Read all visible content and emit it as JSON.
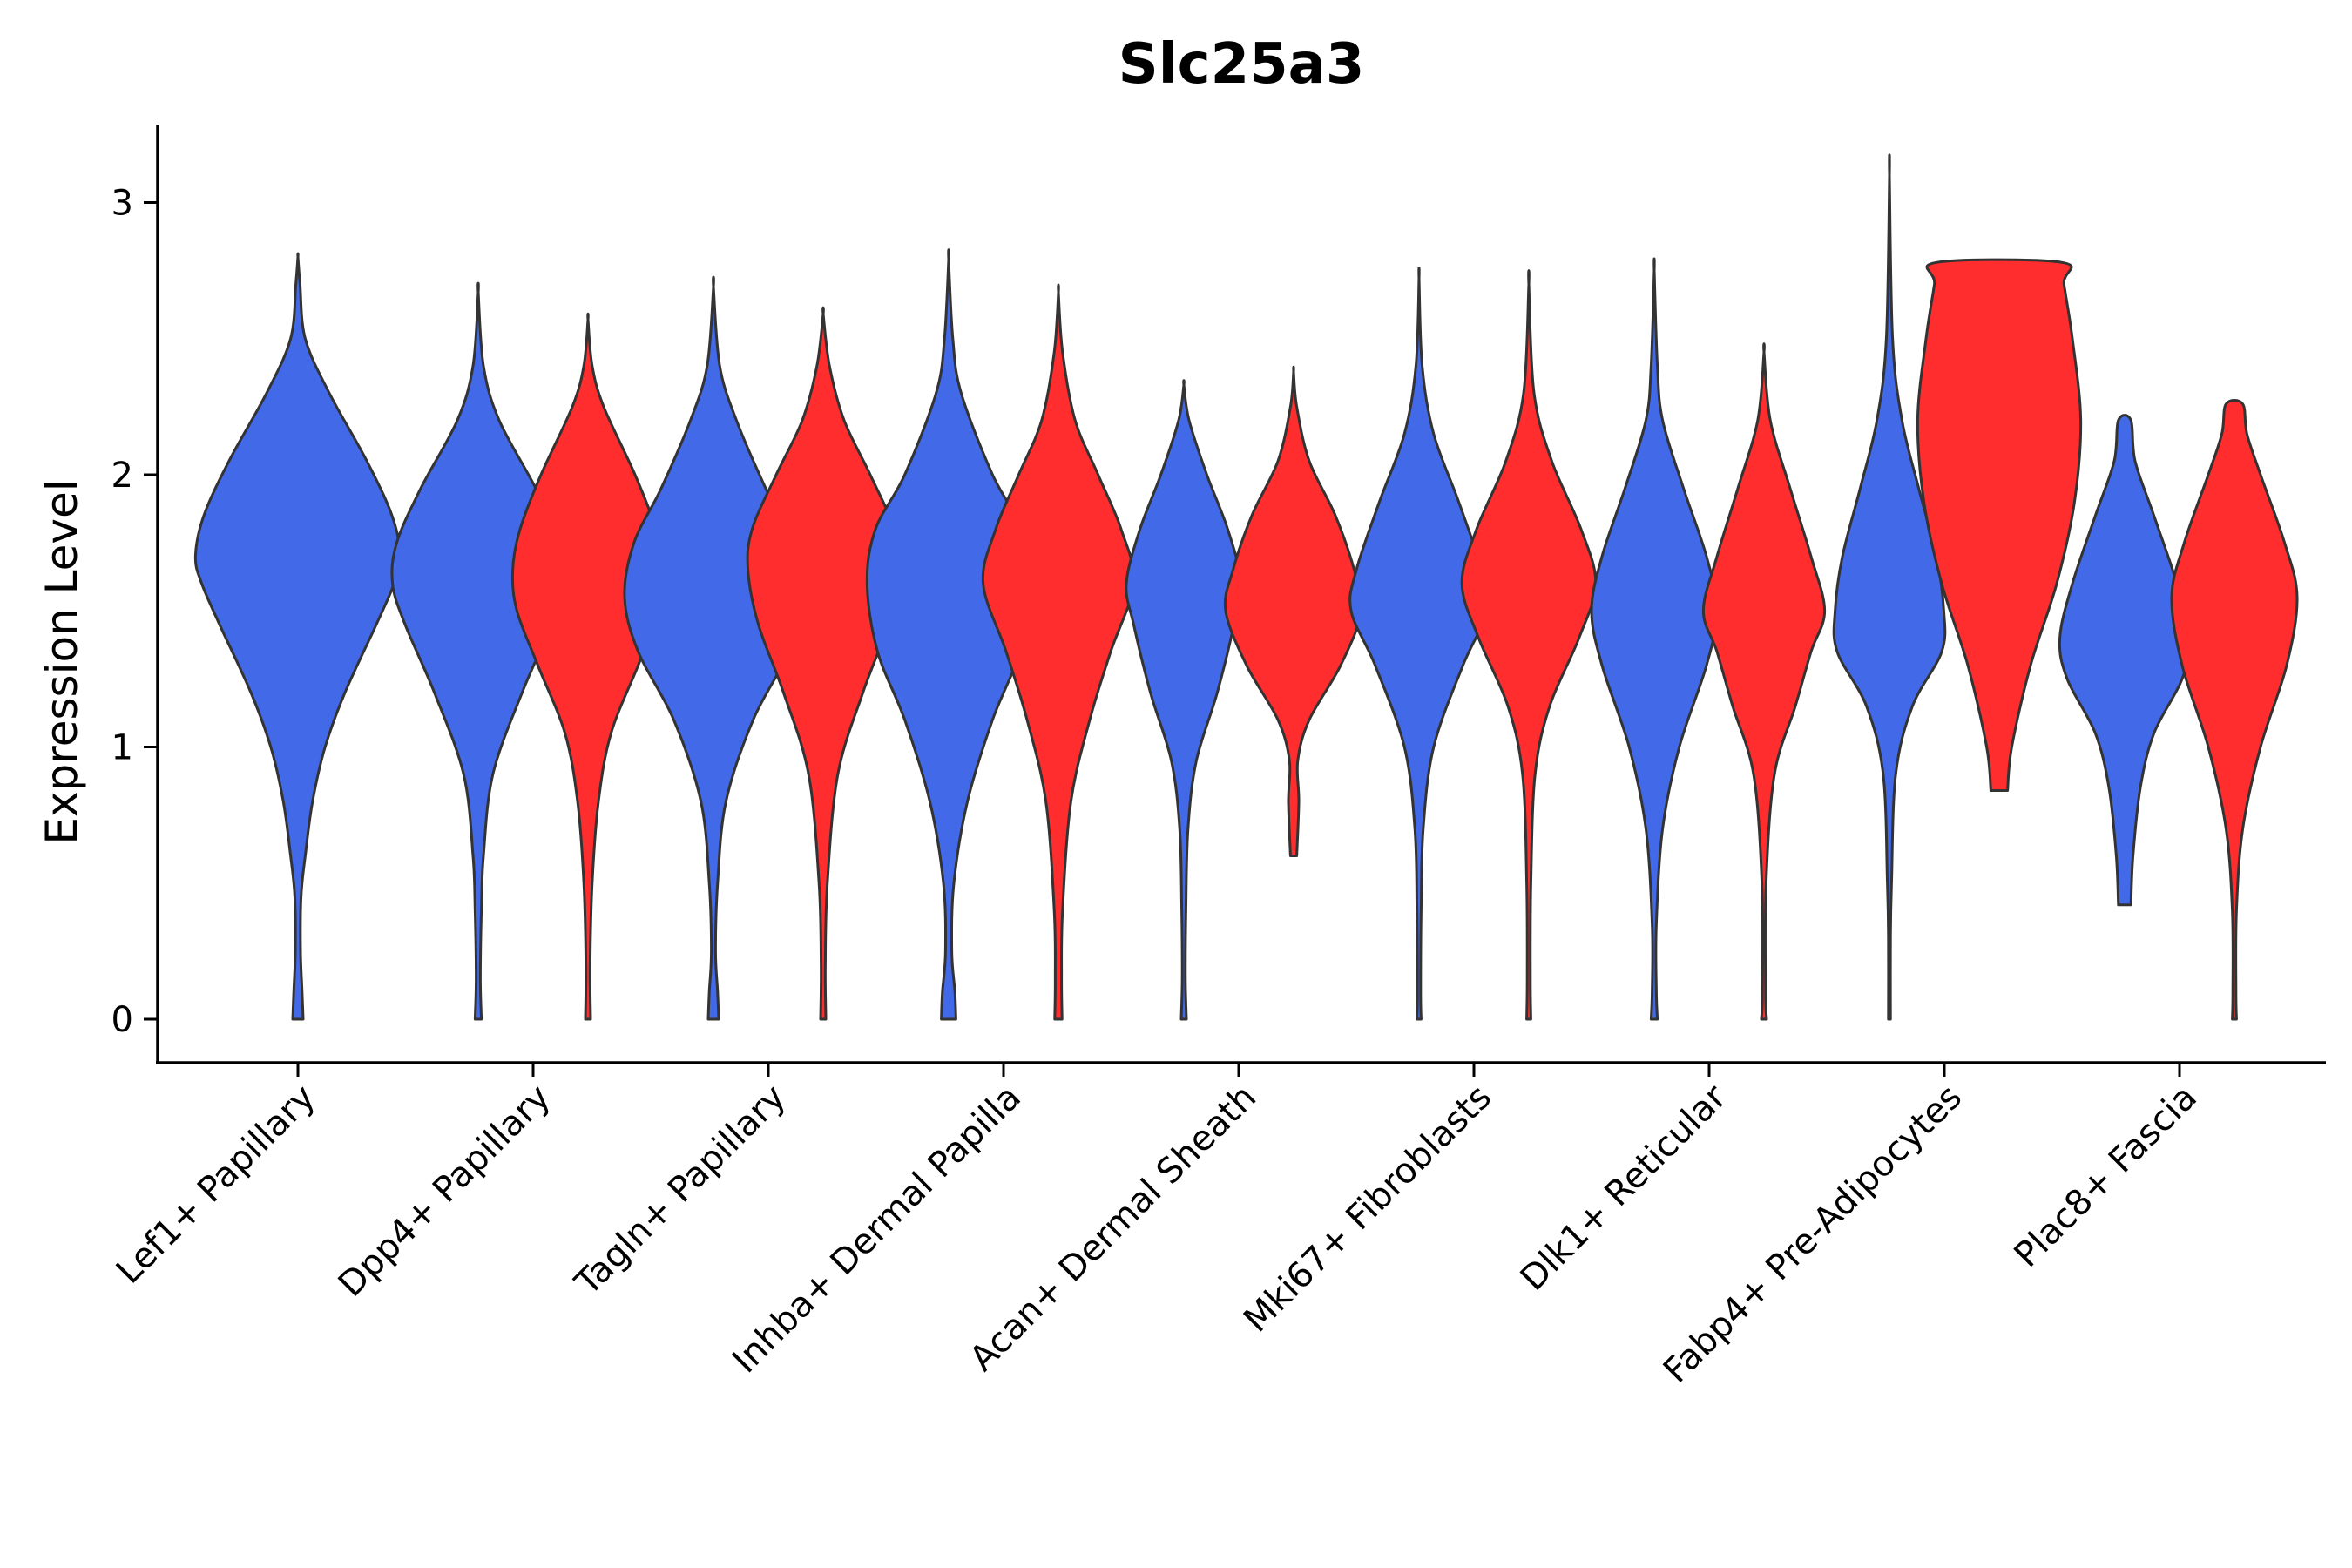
{
  "chart_data": {
    "type": "violin",
    "title": "Slc25a3",
    "xlabel": "",
    "ylabel": "Expression Level",
    "ylim": [
      -0.16,
      3.3
    ],
    "yticks": [
      0,
      1,
      2,
      3
    ],
    "ytick_labels": [
      "0",
      "1",
      "2",
      "3"
    ],
    "grid": false,
    "legend": "none",
    "colors": {
      "group1": "#4169E8",
      "group2": "#FF2D2D",
      "outline": "#333333",
      "axis": "#000000"
    },
    "categories": [
      {
        "label": "Lef1+ Papillary",
        "violins": [
          {
            "group": "group1",
            "color": "#4169E8",
            "profile": [
              [
                0,
                0.05
              ],
              [
                0.1,
                0.04
              ],
              [
                0.25,
                0.025
              ],
              [
                0.45,
                0.03
              ],
              [
                0.6,
                0.07
              ],
              [
                0.8,
                0.14
              ],
              [
                1.0,
                0.26
              ],
              [
                1.2,
                0.45
              ],
              [
                1.45,
                0.75
              ],
              [
                1.6,
                0.92
              ],
              [
                1.7,
                0.98
              ],
              [
                1.85,
                0.9
              ],
              [
                2.05,
                0.66
              ],
              [
                2.3,
                0.3
              ],
              [
                2.5,
                0.07
              ],
              [
                2.7,
                0.02
              ],
              [
                2.8,
                0.0
              ]
            ]
          }
        ]
      },
      {
        "label": "Dpp4+ Papillary",
        "violins": [
          {
            "group": "group1",
            "color": "#4169E8",
            "profile": [
              [
                0,
                0.03
              ],
              [
                0.15,
                0.02
              ],
              [
                0.4,
                0.03
              ],
              [
                0.6,
                0.05
              ],
              [
                0.9,
                0.14
              ],
              [
                1.2,
                0.42
              ],
              [
                1.45,
                0.7
              ],
              [
                1.6,
                0.82
              ],
              [
                1.75,
                0.78
              ],
              [
                1.95,
                0.55
              ],
              [
                2.2,
                0.2
              ],
              [
                2.4,
                0.05
              ],
              [
                2.67,
                0.0
              ]
            ]
          },
          {
            "group": "group2",
            "color": "#FF2D2D",
            "profile": [
              [
                0,
                0.025
              ],
              [
                0.2,
                0.02
              ],
              [
                0.5,
                0.04
              ],
              [
                0.8,
                0.1
              ],
              [
                1.05,
                0.22
              ],
              [
                1.3,
                0.48
              ],
              [
                1.5,
                0.68
              ],
              [
                1.65,
                0.72
              ],
              [
                1.8,
                0.65
              ],
              [
                2.0,
                0.45
              ],
              [
                2.25,
                0.15
              ],
              [
                2.4,
                0.04
              ],
              [
                2.57,
                0.0
              ]
            ]
          }
        ]
      },
      {
        "label": "Tagln+ Papillary",
        "violins": [
          {
            "group": "group1",
            "color": "#4169E8",
            "profile": [
              [
                0,
                0.05
              ],
              [
                0.1,
                0.04
              ],
              [
                0.25,
                0.02
              ],
              [
                0.5,
                0.04
              ],
              [
                0.8,
                0.12
              ],
              [
                1.1,
                0.38
              ],
              [
                1.35,
                0.72
              ],
              [
                1.55,
                0.85
              ],
              [
                1.75,
                0.76
              ],
              [
                1.95,
                0.5
              ],
              [
                2.2,
                0.22
              ],
              [
                2.4,
                0.06
              ],
              [
                2.69,
                0.0
              ]
            ]
          },
          {
            "group": "group2",
            "color": "#FF2D2D",
            "profile": [
              [
                0,
                0.025
              ],
              [
                0.2,
                0.02
              ],
              [
                0.5,
                0.04
              ],
              [
                0.9,
                0.14
              ],
              [
                1.2,
                0.38
              ],
              [
                1.45,
                0.62
              ],
              [
                1.65,
                0.72
              ],
              [
                1.8,
                0.68
              ],
              [
                2.0,
                0.45
              ],
              [
                2.2,
                0.2
              ],
              [
                2.4,
                0.06
              ],
              [
                2.59,
                0.0
              ]
            ]
          }
        ]
      },
      {
        "label": "Inhba+ Dermal Papilla",
        "violins": [
          {
            "group": "group1",
            "color": "#4169E8",
            "profile": [
              [
                0,
                0.07
              ],
              [
                0.1,
                0.06
              ],
              [
                0.25,
                0.03
              ],
              [
                0.5,
                0.05
              ],
              [
                0.8,
                0.18
              ],
              [
                1.1,
                0.42
              ],
              [
                1.35,
                0.68
              ],
              [
                1.6,
                0.78
              ],
              [
                1.8,
                0.7
              ],
              [
                2.0,
                0.42
              ],
              [
                2.3,
                0.12
              ],
              [
                2.5,
                0.04
              ],
              [
                2.79,
                0.0
              ]
            ]
          },
          {
            "group": "group2",
            "color": "#FF2D2D",
            "profile": [
              [
                0,
                0.035
              ],
              [
                0.15,
                0.03
              ],
              [
                0.4,
                0.04
              ],
              [
                0.8,
                0.12
              ],
              [
                1.1,
                0.3
              ],
              [
                1.35,
                0.5
              ],
              [
                1.6,
                0.72
              ],
              [
                1.8,
                0.6
              ],
              [
                2.0,
                0.38
              ],
              [
                2.2,
                0.16
              ],
              [
                2.45,
                0.04
              ],
              [
                2.67,
                0.0
              ]
            ]
          }
        ]
      },
      {
        "label": "Acan+ Dermal Sheath",
        "violins": [
          {
            "group": "group1",
            "color": "#4169E8",
            "profile": [
              [
                0,
                0.025
              ],
              [
                0.15,
                0.015
              ],
              [
                0.4,
                0.02
              ],
              [
                0.7,
                0.04
              ],
              [
                0.95,
                0.12
              ],
              [
                1.2,
                0.32
              ],
              [
                1.45,
                0.48
              ],
              [
                1.6,
                0.55
              ],
              [
                1.8,
                0.42
              ],
              [
                2.0,
                0.22
              ],
              [
                2.2,
                0.05
              ],
              [
                2.33,
                0.0
              ]
            ]
          },
          {
            "group": "group2",
            "color": "#FF2D2D",
            "profile": [
              [
                0.6,
                0.03
              ],
              [
                0.8,
                0.05
              ],
              [
                0.95,
                0.04
              ],
              [
                1.1,
                0.15
              ],
              [
                1.3,
                0.45
              ],
              [
                1.5,
                0.65
              ],
              [
                1.65,
                0.58
              ],
              [
                1.85,
                0.4
              ],
              [
                2.05,
                0.15
              ],
              [
                2.25,
                0.03
              ],
              [
                2.38,
                0.0
              ]
            ]
          }
        ]
      },
      {
        "label": "Mki67+ Fibroblasts",
        "violins": [
          {
            "group": "group1",
            "color": "#4169E8",
            "profile": [
              [
                0,
                0.02
              ],
              [
                0.1,
                0.015
              ],
              [
                0.4,
                0.02
              ],
              [
                0.7,
                0.04
              ],
              [
                1.0,
                0.14
              ],
              [
                1.3,
                0.42
              ],
              [
                1.5,
                0.65
              ],
              [
                1.65,
                0.6
              ],
              [
                1.9,
                0.38
              ],
              [
                2.15,
                0.14
              ],
              [
                2.4,
                0.03
              ],
              [
                2.72,
                0.0
              ]
            ]
          },
          {
            "group": "group2",
            "color": "#FF2D2D",
            "profile": [
              [
                0,
                0.02
              ],
              [
                0.15,
                0.015
              ],
              [
                0.5,
                0.02
              ],
              [
                0.9,
                0.06
              ],
              [
                1.15,
                0.2
              ],
              [
                1.4,
                0.48
              ],
              [
                1.6,
                0.64
              ],
              [
                1.8,
                0.5
              ],
              [
                2.05,
                0.22
              ],
              [
                2.3,
                0.05
              ],
              [
                2.7,
                0.0
              ]
            ]
          }
        ]
      },
      {
        "label": "Dlk1+ Reticular",
        "violins": [
          {
            "group": "group1",
            "color": "#4169E8",
            "profile": [
              [
                0,
                0.03
              ],
              [
                0.1,
                0.02
              ],
              [
                0.35,
                0.02
              ],
              [
                0.7,
                0.08
              ],
              [
                1.0,
                0.24
              ],
              [
                1.3,
                0.5
              ],
              [
                1.5,
                0.6
              ],
              [
                1.7,
                0.5
              ],
              [
                1.95,
                0.28
              ],
              [
                2.2,
                0.08
              ],
              [
                2.4,
                0.03
              ],
              [
                2.75,
                0.0
              ]
            ]
          },
          {
            "group": "group2",
            "color": "#FF2D2D",
            "profile": [
              [
                0,
                0.025
              ],
              [
                0.1,
                0.015
              ],
              [
                0.5,
                0.02
              ],
              [
                0.9,
                0.1
              ],
              [
                1.15,
                0.3
              ],
              [
                1.35,
                0.45
              ],
              [
                1.5,
                0.58
              ],
              [
                1.7,
                0.45
              ],
              [
                1.95,
                0.25
              ],
              [
                2.2,
                0.06
              ],
              [
                2.45,
                0.0
              ]
            ]
          }
        ]
      },
      {
        "label": "Fabp4+ Pre-Adipocytes",
        "violins": [
          {
            "group": "group1",
            "color": "#4169E8",
            "profile": [
              [
                0,
                0.01
              ],
              [
                0.3,
                0.01
              ],
              [
                0.5,
                0.02
              ],
              [
                0.9,
                0.06
              ],
              [
                1.15,
                0.22
              ],
              [
                1.35,
                0.5
              ],
              [
                1.5,
                0.52
              ],
              [
                1.7,
                0.45
              ],
              [
                1.95,
                0.28
              ],
              [
                2.2,
                0.12
              ],
              [
                2.5,
                0.03
              ],
              [
                3.1,
                0.0
              ]
            ]
          },
          {
            "group": "group2",
            "color": "#FF2D2D",
            "profile": [
              [
                0.84,
                0.08
              ],
              [
                1.0,
                0.12
              ],
              [
                1.3,
                0.3
              ],
              [
                1.6,
                0.55
              ],
              [
                1.9,
                0.72
              ],
              [
                2.2,
                0.78
              ],
              [
                2.5,
                0.7
              ],
              [
                2.7,
                0.62
              ],
              [
                2.78,
                0.6
              ]
            ]
          }
        ]
      },
      {
        "label": "Plac8+ Fascia",
        "violins": [
          {
            "group": "group1",
            "color": "#4169E8",
            "profile": [
              [
                0.42,
                0.06
              ],
              [
                0.6,
                0.08
              ],
              [
                0.85,
                0.15
              ],
              [
                1.05,
                0.28
              ],
              [
                1.25,
                0.55
              ],
              [
                1.4,
                0.62
              ],
              [
                1.6,
                0.5
              ],
              [
                1.85,
                0.28
              ],
              [
                2.05,
                0.1
              ],
              [
                2.2,
                0.06
              ]
            ]
          },
          {
            "group": "group2",
            "color": "#FF2D2D",
            "profile": [
              [
                0,
                0.02
              ],
              [
                0.1,
                0.015
              ],
              [
                0.4,
                0.02
              ],
              [
                0.7,
                0.08
              ],
              [
                1.0,
                0.25
              ],
              [
                1.3,
                0.5
              ],
              [
                1.55,
                0.6
              ],
              [
                1.75,
                0.48
              ],
              [
                2.0,
                0.25
              ],
              [
                2.15,
                0.12
              ],
              [
                2.26,
                0.08
              ]
            ]
          }
        ]
      }
    ]
  }
}
